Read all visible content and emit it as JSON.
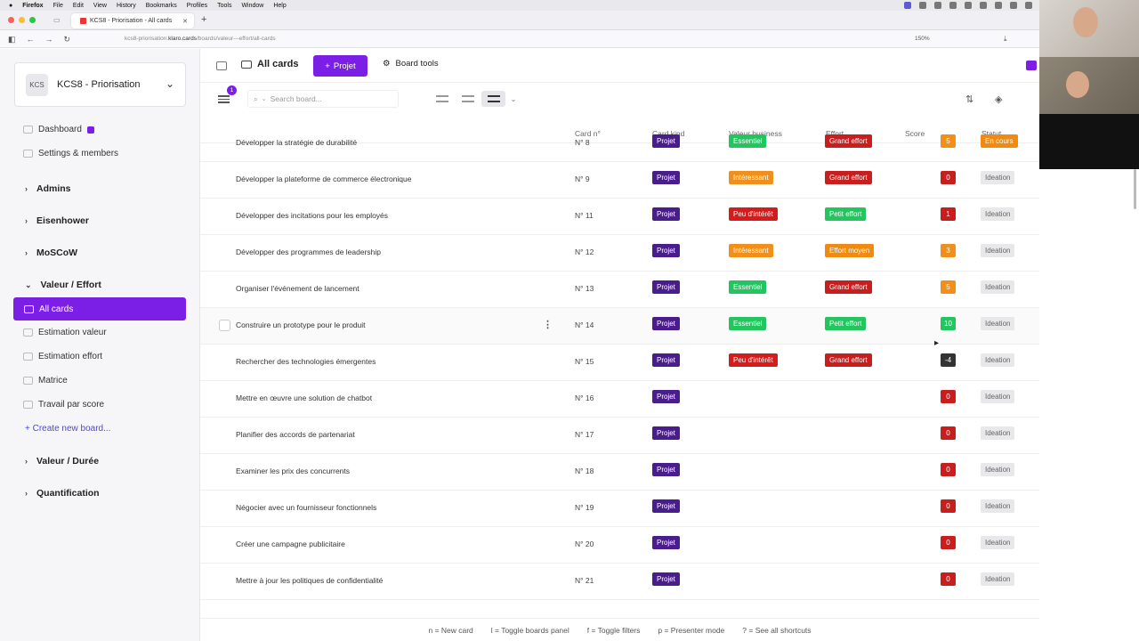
{
  "menubar": {
    "app": "Firefox",
    "items": [
      "File",
      "Edit",
      "View",
      "History",
      "Bookmarks",
      "Profiles",
      "Tools",
      "Window",
      "Help"
    ]
  },
  "browser": {
    "tab_title": "KCS8 - Priorisation - All cards",
    "url_host": "kcs8-priorisation.",
    "url_domain": "klaro.cards",
    "url_path": "/boards/valeur---effort/all-cards",
    "zoom": "150%"
  },
  "sidebar": {
    "board_logo": "KCS",
    "board_name": "KCS8 - Priorisation",
    "dashboard": "Dashboard",
    "settings": "Settings & members",
    "groups": [
      "Admins",
      "Eisenhower",
      "MoSCoW",
      "Valeur / Effort",
      "Valeur / Durée",
      "Quantification"
    ],
    "items": [
      "All cards",
      "Estimation valeur",
      "Estimation effort",
      "Matrice",
      "Travail par score"
    ],
    "create": "Create new board..."
  },
  "topbar": {
    "title": "All cards",
    "new_button": "Projet",
    "tools": "Board tools"
  },
  "filters": {
    "badge": "1",
    "search_placeholder": "Search board..."
  },
  "columns": [
    "Card n°",
    "Card kind",
    "Valeur business",
    "Effort",
    "Score",
    "Statut"
  ],
  "colors": {
    "accent": "#7c1fe6",
    "projet": "#4a1d8c",
    "essentiel": "#22c55e",
    "interessant": "#f0901a",
    "peu": "#d41c1c",
    "grand": "#c81e1e",
    "petit": "#22c55e",
    "moyen": "#ef8a12"
  },
  "rows": [
    {
      "title": "Développer la stratégie de durabilité",
      "num": "N° 8",
      "kind": "Projet",
      "valeur": "Essentiel",
      "effort": "Grand effort",
      "score": "5",
      "statut": "En cours"
    },
    {
      "title": "Développer la plateforme de commerce électronique",
      "num": "N° 9",
      "kind": "Projet",
      "valeur": "Intéressant",
      "effort": "Grand effort",
      "score": "0",
      "statut": "Ideation"
    },
    {
      "title": "Développer des incitations pour les employés",
      "num": "N° 11",
      "kind": "Projet",
      "valeur": "Peu d'intérêt",
      "effort": "Petit effort",
      "score": "1",
      "statut": "Ideation"
    },
    {
      "title": "Développer des programmes de leadership",
      "num": "N° 12",
      "kind": "Projet",
      "valeur": "Intéressant",
      "effort": "Effort moyen",
      "score": "3",
      "statut": "Ideation"
    },
    {
      "title": "Organiser l'événement de lancement",
      "num": "N° 13",
      "kind": "Projet",
      "valeur": "Essentiel",
      "effort": "Grand effort",
      "score": "5",
      "statut": "Ideation"
    },
    {
      "title": "Construire un prototype pour le produit",
      "num": "N° 14",
      "kind": "Projet",
      "valeur": "Essentiel",
      "effort": "Petit effort",
      "score": "10",
      "statut": "Ideation"
    },
    {
      "title": "Rechercher des technologies émergentes",
      "num": "N° 15",
      "kind": "Projet",
      "valeur": "Peu d'intérêt",
      "effort": "Grand effort",
      "score": "-4",
      "statut": "Ideation"
    },
    {
      "title": "Mettre en œuvre une solution de chatbot",
      "num": "N° 16",
      "kind": "Projet",
      "valeur": "",
      "effort": "",
      "score": "0",
      "statut": "Ideation"
    },
    {
      "title": "Planifier des accords de partenariat",
      "num": "N° 17",
      "kind": "Projet",
      "valeur": "",
      "effort": "",
      "score": "0",
      "statut": "Ideation"
    },
    {
      "title": "Examiner les prix des concurrents",
      "num": "N° 18",
      "kind": "Projet",
      "valeur": "",
      "effort": "",
      "score": "0",
      "statut": "Ideation"
    },
    {
      "title": "Négocier avec un fournisseur fonctionnels",
      "num": "N° 19",
      "kind": "Projet",
      "valeur": "",
      "effort": "",
      "score": "0",
      "statut": "Ideation"
    },
    {
      "title": "Créer une campagne publicitaire",
      "num": "N° 20",
      "kind": "Projet",
      "valeur": "",
      "effort": "",
      "score": "0",
      "statut": "Ideation"
    },
    {
      "title": "Mettre à jour les politiques de confidentialité",
      "num": "N° 21",
      "kind": "Projet",
      "valeur": "",
      "effort": "",
      "score": "0",
      "statut": "Ideation"
    }
  ],
  "shortcuts": [
    "n = New card",
    "l = Toggle boards panel",
    "f = Toggle filters",
    "p = Presenter mode",
    "? = See all shortcuts"
  ]
}
